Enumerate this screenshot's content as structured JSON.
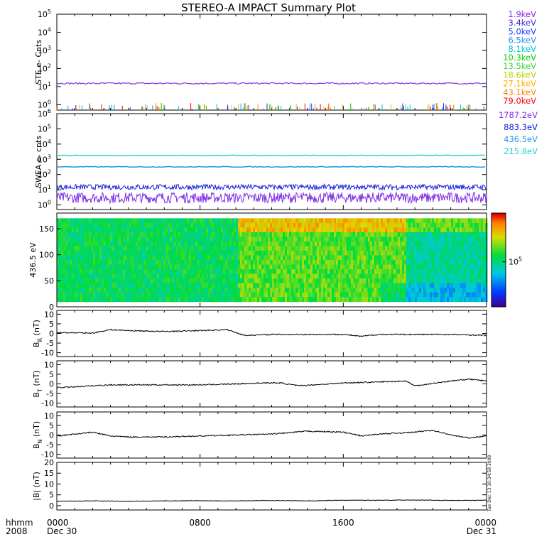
{
  "title": "STEREO-A IMPACT Summary Plot",
  "footer": {
    "row1_label": "hhmm",
    "row2_label": "2008",
    "ticks": [
      {
        "hhmm": "0000",
        "date": "Dec 30",
        "hour": 0
      },
      {
        "hhmm": "0800",
        "date": "",
        "hour": 8
      },
      {
        "hhmm": "1600",
        "date": "",
        "hour": 16
      },
      {
        "hhmm": "0000",
        "date": "Dec 31",
        "hour": 24
      }
    ]
  },
  "side_stamp": "Tue Dec 13 10:34:58 2008",
  "colors": {
    "ste": [
      "#8a2be2",
      "#3a2ad0",
      "#1c3cff",
      "#1e90ff",
      "#00c8c8",
      "#00d000",
      "#3ad43a",
      "#b8d000",
      "#ffb000",
      "#ff7f00",
      "#ff0000"
    ],
    "swea": [
      "#7d2be8",
      "#1420d8",
      "#1e96e6",
      "#28d2c8"
    ]
  },
  "chart_data": [
    {
      "type": "line",
      "panel": "ste",
      "ylabel": "STE e- Cnts",
      "yscale": "log",
      "ylim": [
        0.5,
        100000
      ],
      "yticks": [
        "10^0",
        "10^1",
        "10^2",
        "10^3",
        "10^4",
        "10^5"
      ],
      "xlim_hours": [
        0,
        24
      ],
      "series": [
        {
          "name": "1.9keV",
          "level": 15
        },
        {
          "name": "3.4keV",
          "level": 0.6
        },
        {
          "name": "5.0keV",
          "level": 0.6
        },
        {
          "name": "6.5keV",
          "level": 0.6
        },
        {
          "name": "8.1keV",
          "level": 0.6
        },
        {
          "name": "10.3keV",
          "level": 0.6
        },
        {
          "name": "13.5keV",
          "level": 0.6
        },
        {
          "name": "18.6keV",
          "level": 0.6
        },
        {
          "name": "27.1keV",
          "level": 0.6
        },
        {
          "name": "43.1keV",
          "level": 0.6
        },
        {
          "name": "79.0keV",
          "level": 0.6
        }
      ]
    },
    {
      "type": "line",
      "panel": "swea",
      "ylabel": "SWEA e- cnts",
      "yscale": "log",
      "ylim": [
        0.5,
        1000000
      ],
      "yticks": [
        "10^0",
        "10^1",
        "10^2",
        "10^3",
        "10^4",
        "10^5",
        "10^6"
      ],
      "xlim_hours": [
        0,
        24
      ],
      "series": [
        {
          "name": "1787.2eV",
          "level": 3
        },
        {
          "name": "883.3eV",
          "level": 15
        },
        {
          "name": "436.5eV",
          "level": 320
        },
        {
          "name": "215.8eV",
          "level": 1800
        }
      ]
    },
    {
      "type": "heatmap",
      "panel": "pad",
      "ylabel": "436.5 eV",
      "ylim": [
        0,
        180
      ],
      "yticks": [
        0,
        50,
        100,
        150
      ],
      "xlim_hours": [
        0,
        24
      ],
      "colorbar_label": "10^5"
    },
    {
      "type": "line",
      "panel": "br",
      "ylabel": "B_R (nT)",
      "ylim": [
        -12,
        12
      ],
      "yticks": [
        -10,
        -5,
        0,
        5,
        10
      ],
      "xlim_hours": [
        0,
        24
      ],
      "x": [
        0,
        2,
        3,
        4,
        6,
        8,
        9.5,
        10.5,
        12,
        14,
        16,
        17,
        18,
        20,
        22,
        24
      ],
      "y": [
        0.5,
        0.2,
        2,
        1.5,
        1,
        1.5,
        2,
        -1,
        -0.5,
        -0.5,
        -0.5,
        -1.5,
        -0.5,
        -0.5,
        -0.5,
        -1
      ]
    },
    {
      "type": "line",
      "panel": "bt",
      "ylabel": "B_T (nT)",
      "ylim": [
        -12,
        12
      ],
      "yticks": [
        -10,
        -5,
        0,
        5,
        10
      ],
      "xlim_hours": [
        0,
        24
      ],
      "x": [
        0,
        2,
        3,
        4,
        6,
        8,
        10,
        11.5,
        12.5,
        13.5,
        16,
        18,
        19.5,
        20,
        22,
        23,
        24
      ],
      "y": [
        -2,
        -1,
        -0.5,
        -0.5,
        -0.5,
        -0.5,
        0,
        0.5,
        0.5,
        -1,
        0.5,
        1,
        1.5,
        -1,
        1.5,
        2.5,
        1.5
      ]
    },
    {
      "type": "line",
      "panel": "bn",
      "ylabel": "B_N (nT)",
      "ylim": [
        -12,
        12
      ],
      "yticks": [
        -10,
        -5,
        0,
        5,
        10
      ],
      "xlim_hours": [
        0,
        24
      ],
      "x": [
        0,
        1,
        2,
        3,
        4,
        6,
        8,
        10,
        12,
        14,
        16,
        17,
        18,
        20,
        21,
        22,
        23,
        24
      ],
      "y": [
        -0.5,
        0.5,
        1.5,
        -0.5,
        -1,
        -1,
        -0.5,
        0,
        0.5,
        2,
        1.5,
        -0.5,
        0.5,
        1.5,
        2.5,
        0,
        -1.5,
        -0.5
      ]
    },
    {
      "type": "line",
      "panel": "bmag",
      "ylabel": "|B| (nT)",
      "ylim": [
        -2,
        20
      ],
      "yticks": [
        0,
        5,
        10,
        15,
        20
      ],
      "xlim_hours": [
        0,
        24
      ],
      "x": [
        0,
        2,
        4,
        6,
        8,
        10,
        12,
        14,
        16,
        18,
        20,
        22,
        24
      ],
      "y": [
        2,
        2.2,
        2,
        2.2,
        2.3,
        2.2,
        2.4,
        2.2,
        2.5,
        2.5,
        2.6,
        2.4,
        2.5
      ]
    }
  ]
}
